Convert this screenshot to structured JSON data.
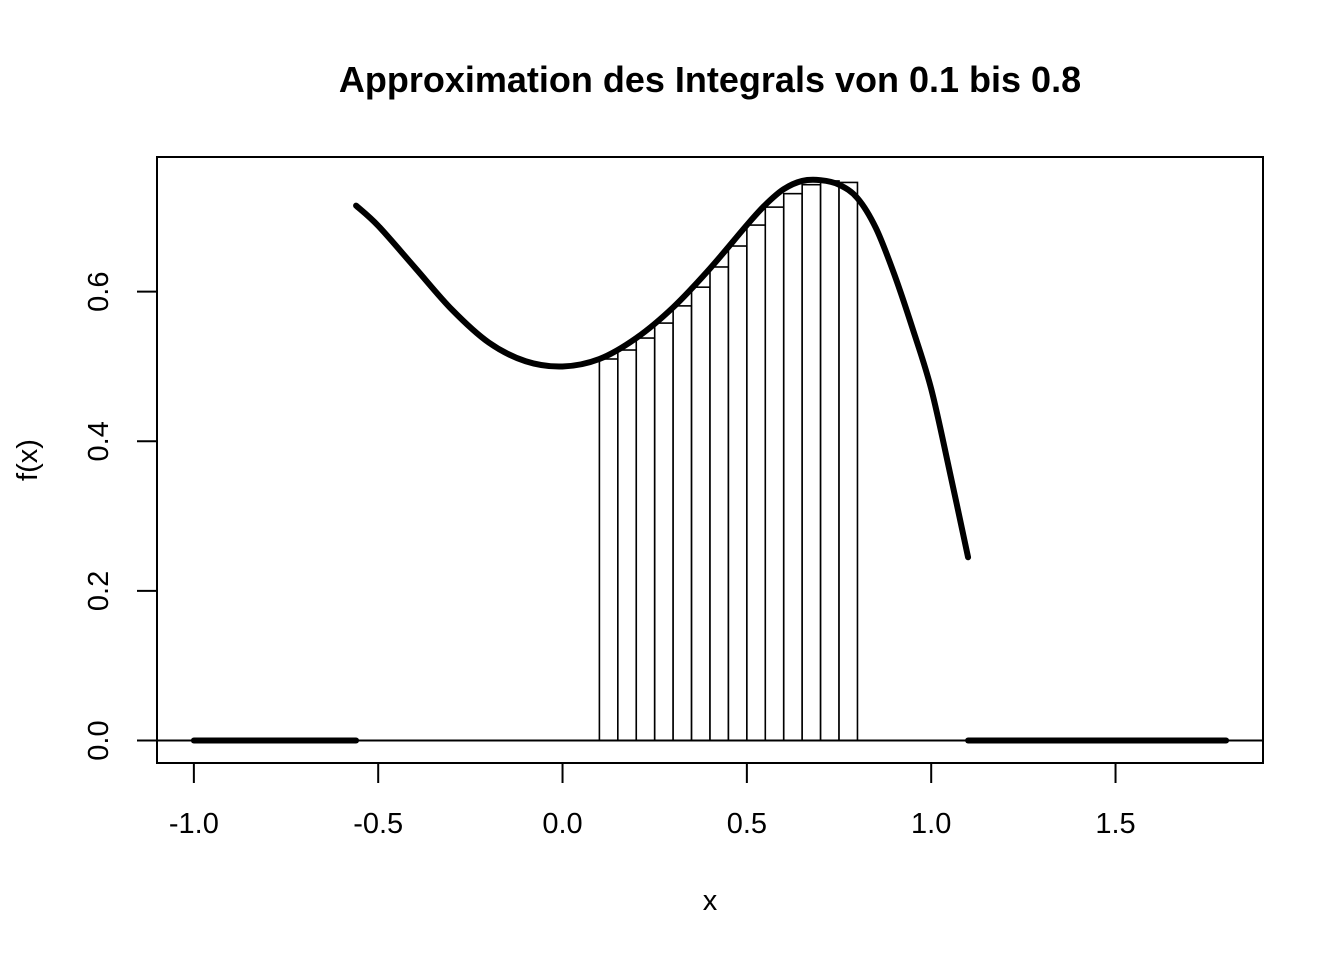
{
  "chart_data": {
    "type": "line",
    "title": "Approximation des Integrals von 0.1 bis 0.8",
    "xlabel": "x",
    "ylabel": "f(x)",
    "xlim": [
      -1.1,
      1.9
    ],
    "ylim": [
      -0.03,
      0.78
    ],
    "x_ticks": [
      -1.0,
      -0.5,
      0.0,
      0.5,
      1.0,
      1.5
    ],
    "x_tick_labels": [
      "-1.0",
      "-0.5",
      "0.0",
      "0.5",
      "1.0",
      "1.5"
    ],
    "y_ticks": [
      0.0,
      0.2,
      0.4,
      0.6
    ],
    "y_tick_labels": [
      "0.0",
      "0.2",
      "0.4",
      "0.6"
    ],
    "grid": false,
    "baseline": 0,
    "series": [
      {
        "x": [
          -0.56,
          -0.5,
          -0.4,
          -0.3,
          -0.2,
          -0.1,
          0.0,
          0.1,
          0.2,
          0.3,
          0.4,
          0.5,
          0.55,
          0.6,
          0.65,
          0.7,
          0.75,
          0.8,
          0.85,
          0.9,
          0.95,
          1.0,
          1.05,
          1.1
        ],
        "y": [
          0.715,
          0.688,
          0.632,
          0.576,
          0.532,
          0.507,
          0.5,
          0.51,
          0.538,
          0.579,
          0.631,
          0.689,
          0.716,
          0.737,
          0.748,
          0.749,
          0.743,
          0.725,
          0.685,
          0.623,
          0.55,
          0.47,
          0.36,
          0.245
        ]
      },
      {
        "x": [
          -1.0,
          -0.56
        ],
        "y": [
          0,
          0
        ]
      },
      {
        "x": [
          1.1,
          1.8
        ],
        "y": [
          0,
          0
        ]
      }
    ],
    "rectangles": {
      "x_left": [
        0.1,
        0.15,
        0.2,
        0.25,
        0.3,
        0.35,
        0.4,
        0.45,
        0.5,
        0.55,
        0.6,
        0.65,
        0.7,
        0.75
      ],
      "width": 0.05,
      "heights": [
        0.51,
        0.522,
        0.538,
        0.558,
        0.581,
        0.606,
        0.633,
        0.661,
        0.689,
        0.713,
        0.731,
        0.743,
        0.748,
        0.746
      ]
    }
  }
}
